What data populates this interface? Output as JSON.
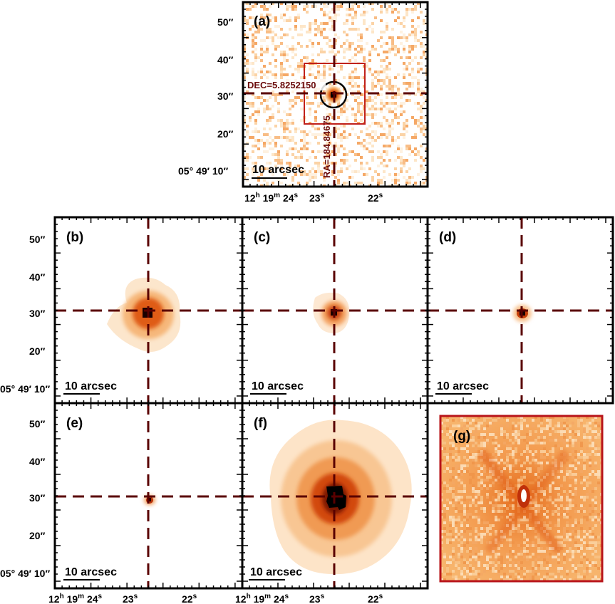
{
  "panels": [
    {
      "id": "a",
      "letter": "(a)",
      "scale_label": "10 arcsec",
      "emission": "noisy",
      "box": true,
      "circle": true,
      "dec_label": "DEC=5.8252150",
      "ra_label": "RA=184.84675"
    },
    {
      "id": "b",
      "letter": "(b)",
      "scale_label": "10 arcsec",
      "emission": "extended-medium"
    },
    {
      "id": "c",
      "letter": "(c)",
      "scale_label": "10 arcsec",
      "emission": "compact"
    },
    {
      "id": "d",
      "letter": "(d)",
      "scale_label": "10 arcsec",
      "emission": "point"
    },
    {
      "id": "e",
      "letter": "(e)",
      "scale_label": "10 arcsec",
      "emission": "point-small"
    },
    {
      "id": "f",
      "letter": "(f)",
      "scale_label": "10 arcsec",
      "emission": "extended-large"
    },
    {
      "id": "g",
      "letter": "(g)",
      "emission": "residual"
    }
  ],
  "axis": {
    "y_ticks": [
      "50″",
      "40″",
      "30″",
      "20″"
    ],
    "y_origin": {
      "deg": "05°",
      "min": "49′",
      "sec": "10″"
    },
    "x_origin": {
      "h": "12",
      "h_unit": "h",
      "m": "19",
      "m_unit": "m",
      "s": "24",
      "s_unit": "s"
    },
    "x_ticks": [
      {
        "value": "23",
        "unit": "s"
      },
      {
        "value": "22",
        "unit": "s"
      }
    ]
  },
  "colors": {
    "frame": "#000000",
    "crosshair": "#5a0000",
    "box": "#c0201a",
    "circle": "#000000",
    "residual_border": "#b8141a",
    "residual_fill": "#f0a060",
    "emission_core": "#000000",
    "emission_mid": "#d2480a",
    "emission_outer": "#fbe3c4"
  }
}
